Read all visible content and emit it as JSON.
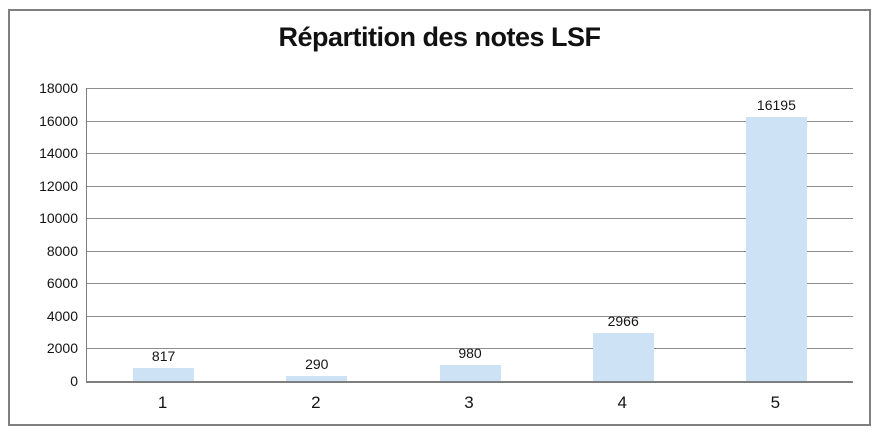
{
  "chart_data": {
    "type": "bar",
    "title": "Répartition des notes LSF",
    "categories": [
      "1",
      "2",
      "3",
      "4",
      "5"
    ],
    "values": [
      817,
      290,
      980,
      2966,
      16195
    ],
    "data_labels": [
      "817",
      "290",
      "980",
      "2966",
      "16195"
    ],
    "xlabel": "",
    "ylabel": "",
    "ylim": [
      0,
      18000
    ],
    "y_ticks": [
      0,
      2000,
      4000,
      6000,
      8000,
      10000,
      12000,
      14000,
      16000,
      18000
    ],
    "grid": true,
    "legend": false,
    "colors": {
      "bar_fill": "#cee2f5",
      "gridline": "#8e8e8e",
      "axis_line": "#7f7f7f",
      "frame_border": "#7f7f7f",
      "text": "#141414",
      "background": "#ffffff"
    }
  }
}
